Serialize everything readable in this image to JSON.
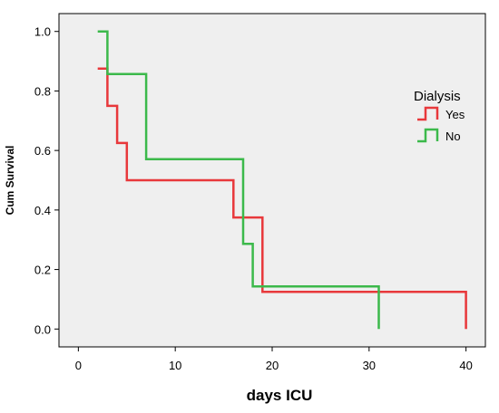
{
  "chart_data": {
    "type": "line",
    "step": true,
    "xlabel": "days ICU",
    "ylabel": "Cum Survival",
    "xlim": [
      -2,
      42
    ],
    "ylim": [
      -0.06,
      1.06
    ],
    "xticks": [
      0,
      10,
      20,
      30,
      40
    ],
    "yticks": [
      0.0,
      0.2,
      0.4,
      0.6,
      0.8,
      1.0
    ],
    "xtick_labels": [
      "0",
      "10",
      "20",
      "30",
      "40"
    ],
    "ytick_labels": [
      "0.0",
      "0.2",
      "0.4",
      "0.6",
      "0.8",
      "1.0"
    ],
    "grid": false,
    "background": "#efefef",
    "legend": {
      "title": "Dialysis",
      "position": "right"
    },
    "series": [
      {
        "name": "Yes",
        "color": "#e8383b",
        "points": [
          [
            2,
            0.875
          ],
          [
            3,
            0.875
          ],
          [
            3,
            0.75
          ],
          [
            4,
            0.75
          ],
          [
            4,
            0.625
          ],
          [
            5,
            0.625
          ],
          [
            5,
            0.5
          ],
          [
            16,
            0.5
          ],
          [
            16,
            0.375
          ],
          [
            19,
            0.375
          ],
          [
            19,
            0.125
          ],
          [
            40,
            0.125
          ],
          [
            40,
            0.0
          ]
        ]
      },
      {
        "name": "No",
        "color": "#3cb94b",
        "points": [
          [
            2,
            1.0
          ],
          [
            3,
            1.0
          ],
          [
            3,
            0.857
          ],
          [
            7,
            0.857
          ],
          [
            7,
            0.571
          ],
          [
            17,
            0.571
          ],
          [
            17,
            0.286
          ],
          [
            18,
            0.286
          ],
          [
            18,
            0.143
          ],
          [
            31,
            0.143
          ],
          [
            31,
            0.0
          ]
        ]
      }
    ]
  }
}
